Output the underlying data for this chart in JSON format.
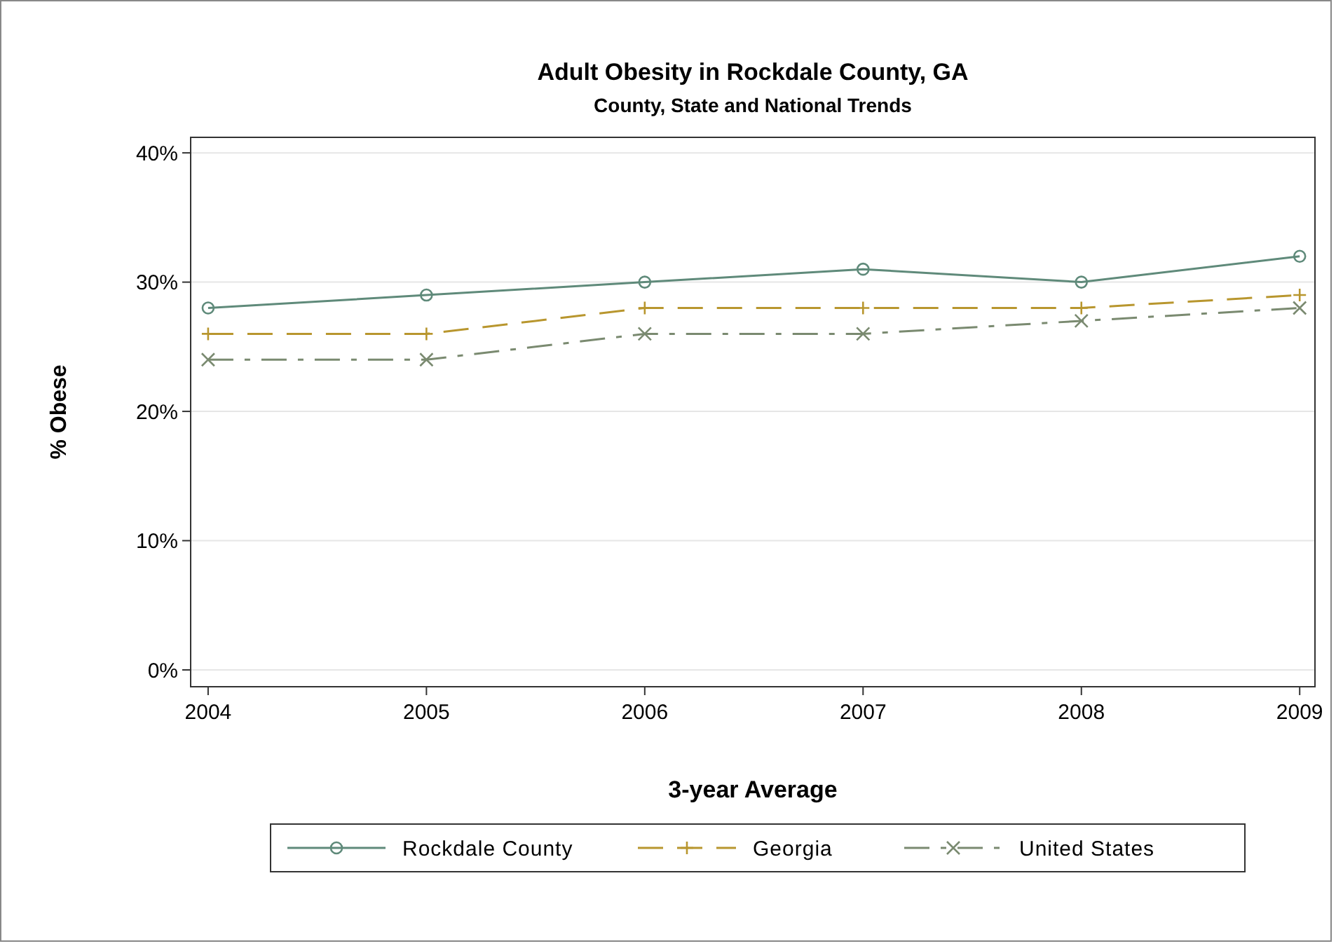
{
  "chart_data": {
    "type": "line",
    "title": "Adult Obesity in Rockdale County, GA",
    "subtitle": "County, State and National Trends",
    "xlabel": "3-year Average",
    "ylabel": "% Obese",
    "x": [
      2004,
      2005,
      2006,
      2007,
      2008,
      2009
    ],
    "series": [
      {
        "name": "Rockdale County",
        "color": "#5f8a7a",
        "values": [
          28,
          29,
          30,
          31,
          30,
          32
        ],
        "marker": "circle",
        "line_style": "solid"
      },
      {
        "name": "Georgia",
        "color": "#b8962e",
        "values": [
          26,
          26,
          28,
          28,
          28,
          29
        ],
        "marker": "plus",
        "line_style": "dashed"
      },
      {
        "name": "United States",
        "color": "#7a8a70",
        "values": [
          24,
          24,
          26,
          26,
          27,
          28
        ],
        "marker": "cross",
        "line_style": "dashdot"
      }
    ],
    "xlim": [
      2003.92,
      2009.07
    ],
    "xticks": [
      2004,
      2005,
      2006,
      2007,
      2008,
      2009
    ],
    "ylim": [
      -1.3,
      41.2
    ],
    "yticks": [
      {
        "value": 0,
        "label": "0%"
      },
      {
        "value": 10,
        "label": "10%"
      },
      {
        "value": 20,
        "label": "20%"
      },
      {
        "value": 30,
        "label": "30%"
      },
      {
        "value": 40,
        "label": "40%"
      }
    ],
    "grid": "y",
    "legend": "bottom"
  }
}
